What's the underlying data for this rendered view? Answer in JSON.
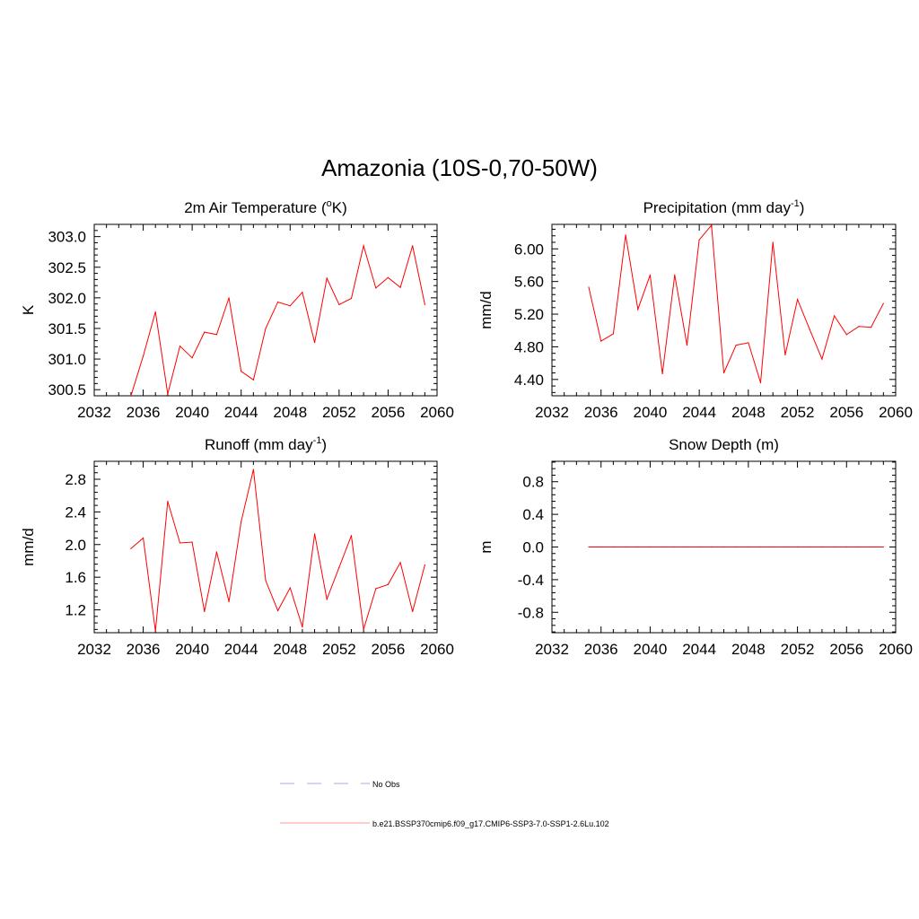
{
  "figure": {
    "title": "Amazonia (10S-0,70-50W)"
  },
  "legend": {
    "entries": [
      {
        "label": "No Obs",
        "style": "dashed",
        "color": "#aaaaee"
      },
      {
        "label": "b.e21.BSSP370cmip6.f09_g17.CMIP6-SSP3-7.0-SSP1-2.6Lu.102",
        "style": "solid",
        "color": "#ff9999"
      }
    ]
  },
  "chart_data": [
    {
      "type": "line",
      "title": "2m Air Temperature (",
      "title_sup": "o",
      "title_after": "K)",
      "ylabel": "K",
      "xlim": [
        2032,
        2060
      ],
      "ylim": [
        300.4,
        303.2
      ],
      "xticks": [
        "2032",
        "2036",
        "2040",
        "2044",
        "2048",
        "2052",
        "2056",
        "2060"
      ],
      "yticks": [
        "300.5",
        "301.0",
        "301.5",
        "302.0",
        "302.5",
        "303.0"
      ],
      "ytick_values": [
        300.5,
        301.0,
        301.5,
        302.0,
        302.5,
        303.0
      ],
      "line_color": "#ff0000",
      "series": [
        {
          "x": [
            2035,
            2036,
            2037,
            2038,
            2039,
            2040,
            2041,
            2042,
            2043,
            2044,
            2045,
            2046,
            2047,
            2048,
            2049,
            2050,
            2051,
            2052,
            2053,
            2054,
            2055,
            2056,
            2057,
            2058,
            2059
          ],
          "values": [
            300.4,
            301.05,
            301.77,
            300.43,
            301.21,
            301.02,
            301.44,
            301.4,
            302.0,
            300.8,
            300.66,
            301.5,
            301.93,
            301.87,
            302.09,
            301.27,
            302.32,
            301.89,
            301.99,
            302.85,
            302.16,
            302.33,
            302.17,
            302.85,
            301.89
          ]
        }
      ]
    },
    {
      "type": "line",
      "title": "Precipitation (mm day",
      "title_sup": "-1",
      "title_after": ")",
      "ylabel": "mm/d",
      "xlim": [
        2032,
        2060
      ],
      "ylim": [
        4.2,
        6.3
      ],
      "xticks": [
        "2032",
        "2036",
        "2040",
        "2044",
        "2048",
        "2052",
        "2056",
        "2060"
      ],
      "yticks": [
        "4.40",
        "4.80",
        "5.20",
        "5.60",
        "6.00"
      ],
      "ytick_values": [
        4.4,
        4.8,
        5.2,
        5.6,
        6.0
      ],
      "line_color": "#ff0000",
      "series": [
        {
          "x": [
            2035,
            2036,
            2037,
            2038,
            2039,
            2040,
            2041,
            2042,
            2043,
            2044,
            2045,
            2046,
            2047,
            2048,
            2049,
            2050,
            2051,
            2052,
            2053,
            2054,
            2055,
            2056,
            2057,
            2058,
            2059
          ],
          "values": [
            5.53,
            4.87,
            4.96,
            6.17,
            5.26,
            5.68,
            4.47,
            5.68,
            4.82,
            6.11,
            6.29,
            4.48,
            4.82,
            4.85,
            4.36,
            6.08,
            4.7,
            5.38,
            5.01,
            4.65,
            5.18,
            4.95,
            5.05,
            5.04,
            5.33
          ]
        }
      ]
    },
    {
      "type": "line",
      "title": "Runoff (mm day",
      "title_sup": "-1",
      "title_after": ")",
      "ylabel": "mm/d",
      "xlim": [
        2032,
        2060
      ],
      "ylim": [
        0.92,
        3.02
      ],
      "xticks": [
        "2032",
        "2036",
        "2040",
        "2044",
        "2048",
        "2052",
        "2056",
        "2060"
      ],
      "yticks": [
        "1.2",
        "1.6",
        "2.0",
        "2.4",
        "2.8"
      ],
      "ytick_values": [
        1.2,
        1.6,
        2.0,
        2.4,
        2.8
      ],
      "line_color": "#ff0000",
      "series": [
        {
          "x": [
            2035,
            2036,
            2037,
            2038,
            2039,
            2040,
            2041,
            2042,
            2043,
            2044,
            2045,
            2046,
            2047,
            2048,
            2049,
            2050,
            2051,
            2052,
            2053,
            2054,
            2055,
            2056,
            2057,
            2058,
            2059
          ],
          "values": [
            1.95,
            2.08,
            0.94,
            2.53,
            2.02,
            2.03,
            1.18,
            1.91,
            1.3,
            2.28,
            2.92,
            1.56,
            1.19,
            1.47,
            0.99,
            2.13,
            1.33,
            1.72,
            2.11,
            0.96,
            1.46,
            1.51,
            1.78,
            1.18,
            1.75
          ]
        }
      ]
    },
    {
      "type": "line",
      "title": "Snow Depth (m)",
      "title_sup": "",
      "title_after": "",
      "ylabel": "m",
      "xlim": [
        2032,
        2060
      ],
      "ylim": [
        -1.05,
        1.05
      ],
      "xticks": [
        "2032",
        "2036",
        "2040",
        "2044",
        "2048",
        "2052",
        "2056",
        "2060"
      ],
      "yticks": [
        "-0.8",
        "-0.4",
        "0.0",
        "0.4",
        "0.8"
      ],
      "ytick_values": [
        -0.8,
        -0.4,
        0.0,
        0.4,
        0.8
      ],
      "line_color": "#ff0000",
      "series": [
        {
          "x": [
            2035,
            2036,
            2037,
            2038,
            2039,
            2040,
            2041,
            2042,
            2043,
            2044,
            2045,
            2046,
            2047,
            2048,
            2049,
            2050,
            2051,
            2052,
            2053,
            2054,
            2055,
            2056,
            2057,
            2058,
            2059
          ],
          "values": [
            0,
            0,
            0,
            0,
            0,
            0,
            0,
            0,
            0,
            0,
            0,
            0,
            0,
            0,
            0,
            0,
            0,
            0,
            0,
            0,
            0,
            0,
            0,
            0,
            0
          ]
        }
      ]
    }
  ]
}
